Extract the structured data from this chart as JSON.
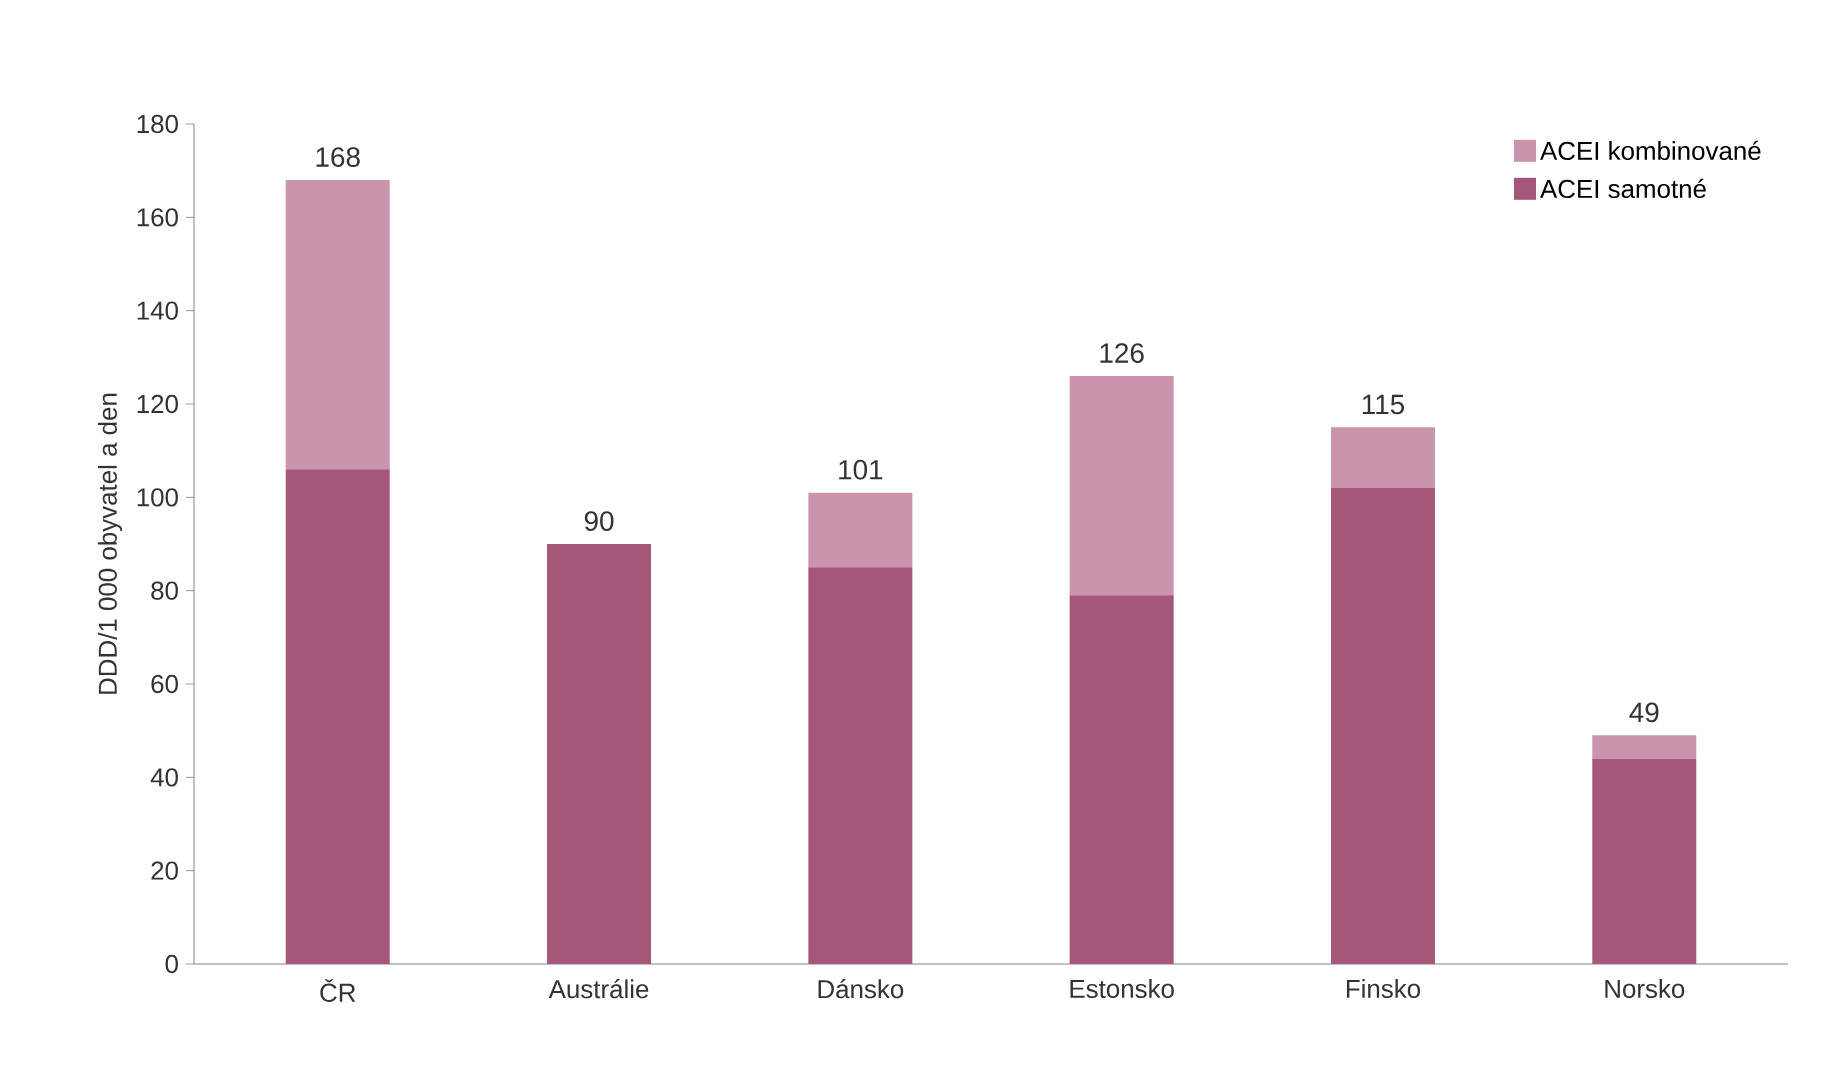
{
  "chart_data": {
    "type": "bar",
    "stacked": true,
    "ylabel": "DDD/1 000 obyvatel a den",
    "categories": [
      "ČR",
      "Austrálie",
      "Dánsko",
      "Estonsko",
      "Finsko",
      "Norsko"
    ],
    "series": [
      {
        "name": "ACEI samotné",
        "color": "#a5577a",
        "values": [
          106,
          90,
          85,
          79,
          102,
          44
        ]
      },
      {
        "name": "ACEI kombinované",
        "color": "#c994ac",
        "values": [
          62,
          0,
          16,
          47,
          13,
          5
        ]
      }
    ],
    "totals": [
      "168",
      "90",
      "101",
      "126",
      "115",
      "49"
    ],
    "ylim": [
      0,
      180
    ],
    "yticks": [
      0,
      20,
      40,
      60,
      80,
      100,
      120,
      140,
      160,
      180
    ],
    "grid": false,
    "legend": "top right"
  }
}
